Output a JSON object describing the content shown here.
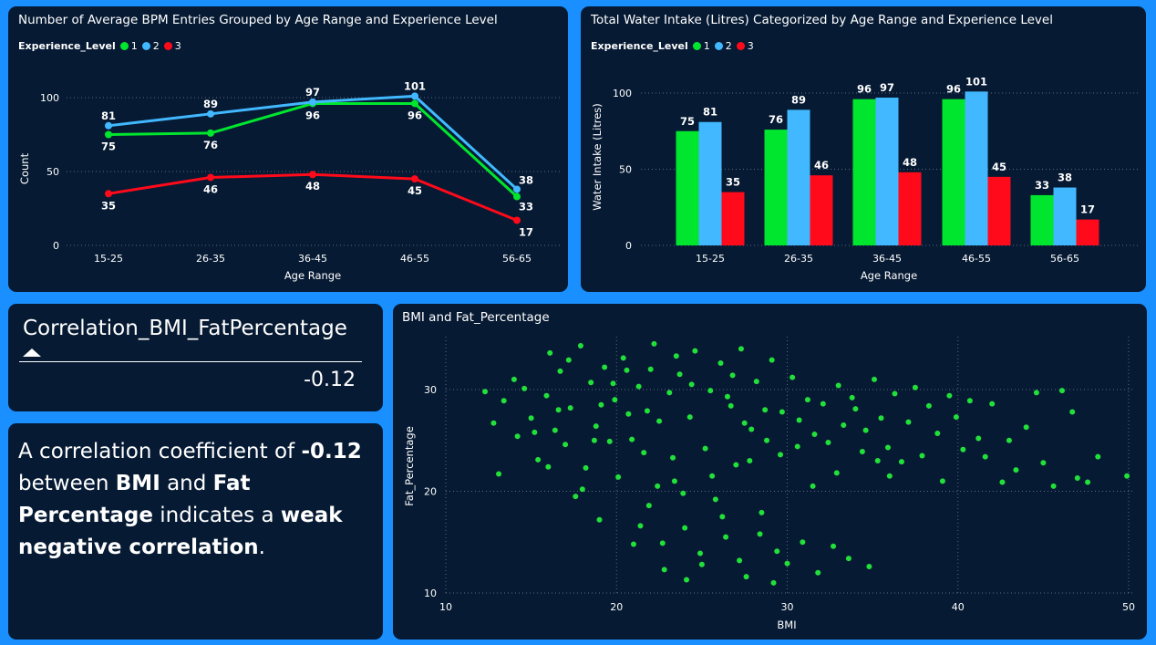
{
  "colors": {
    "page_bg": "#1a8fff",
    "card_bg": "#061a33",
    "level1": "#00e62e",
    "level2": "#41b8ff",
    "level3": "#ff0a1a",
    "scatter": "#22e03a"
  },
  "legend": {
    "title": "Experience_Level",
    "items": [
      "1",
      "2",
      "3"
    ]
  },
  "line_card": {
    "title": "Number of Average BPM Entries Grouped by Age Range and Experience Level"
  },
  "bar_card": {
    "title": "Total Water Intake (Litres) Categorized by Age Range and Experience Level"
  },
  "scatter_card": {
    "title": "BMI and Fat_Percentage"
  },
  "correlation_card": {
    "label": "Correlation_BMI_FatPercentage",
    "value": "-0.12"
  },
  "narrative": {
    "t1": "A correlation coefficient of ",
    "b1": "-0.12",
    "t2": " between ",
    "b2": "BMI",
    "t3": " and ",
    "b3": "Fat Percentage",
    "t4": " indicates a ",
    "b4": "weak negative correlation",
    "t5": "."
  },
  "chart_data": [
    {
      "type": "line",
      "title": "Number of Average BPM Entries Grouped by Age Range and Experience Level",
      "xlabel": "Age Range",
      "ylabel": "Count",
      "categories": [
        "15-25",
        "26-35",
        "36-45",
        "46-55",
        "56-65"
      ],
      "ylim": [
        0,
        110
      ],
      "yticks": [
        0,
        50,
        100
      ],
      "grid": true,
      "legend_title": "Experience_Level",
      "legend_position": "top-left",
      "series": [
        {
          "name": "1",
          "values": [
            75,
            76,
            96,
            96,
            33
          ]
        },
        {
          "name": "2",
          "values": [
            81,
            89,
            97,
            101,
            38
          ]
        },
        {
          "name": "3",
          "values": [
            35,
            46,
            48,
            45,
            17
          ]
        }
      ]
    },
    {
      "type": "bar",
      "title": "Total Water Intake (Litres) Categorized by Age Range and Experience Level",
      "xlabel": "Age Range",
      "ylabel": "Water Intake (Litres)",
      "categories": [
        "15-25",
        "26-35",
        "36-45",
        "46-55",
        "56-65"
      ],
      "ylim": [
        0,
        110
      ],
      "yticks": [
        0,
        50,
        100
      ],
      "grid": true,
      "legend_title": "Experience_Level",
      "legend_position": "top-left",
      "series": [
        {
          "name": "1",
          "values": [
            75,
            76,
            96,
            96,
            33
          ]
        },
        {
          "name": "2",
          "values": [
            81,
            89,
            97,
            101,
            38
          ]
        },
        {
          "name": "3",
          "values": [
            35,
            46,
            48,
            45,
            17
          ]
        }
      ]
    },
    {
      "type": "scatter",
      "title": "BMI and Fat_Percentage",
      "xlabel": "BMI",
      "ylabel": "Fat_Percentage",
      "xlim": [
        10,
        50
      ],
      "ylim": [
        10,
        35
      ],
      "xticks": [
        10,
        20,
        30,
        40,
        50
      ],
      "yticks": [
        10,
        20,
        30
      ],
      "grid": true,
      "points": [
        [
          12.3,
          29.8
        ],
        [
          12.8,
          26.7
        ],
        [
          13.1,
          21.7
        ],
        [
          13.4,
          28.9
        ],
        [
          14.2,
          25.4
        ],
        [
          14.6,
          30.1
        ],
        [
          15.0,
          27.2
        ],
        [
          15.4,
          23.1
        ],
        [
          15.9,
          29.4
        ],
        [
          16.1,
          33.6
        ],
        [
          16.4,
          26.0
        ],
        [
          16.7,
          31.8
        ],
        [
          17.0,
          24.6
        ],
        [
          17.3,
          28.2
        ],
        [
          17.6,
          19.5
        ],
        [
          17.9,
          34.3
        ],
        [
          18.2,
          22.3
        ],
        [
          18.5,
          30.7
        ],
        [
          18.8,
          26.4
        ],
        [
          19.0,
          17.2
        ],
        [
          19.3,
          32.2
        ],
        [
          19.6,
          24.9
        ],
        [
          19.9,
          29.0
        ],
        [
          20.1,
          21.4
        ],
        [
          20.4,
          33.1
        ],
        [
          20.7,
          27.6
        ],
        [
          21.0,
          14.8
        ],
        [
          21.3,
          30.3
        ],
        [
          21.6,
          23.8
        ],
        [
          21.9,
          18.6
        ],
        [
          22.2,
          34.5
        ],
        [
          22.5,
          26.9
        ],
        [
          22.8,
          12.3
        ],
        [
          23.1,
          29.7
        ],
        [
          23.4,
          21.0
        ],
        [
          23.7,
          31.5
        ],
        [
          24.0,
          16.4
        ],
        [
          24.3,
          27.3
        ],
        [
          24.6,
          33.8
        ],
        [
          24.9,
          13.9
        ],
        [
          25.2,
          24.2
        ],
        [
          25.5,
          29.9
        ],
        [
          25.8,
          19.2
        ],
        [
          26.1,
          32.6
        ],
        [
          26.4,
          15.5
        ],
        [
          26.7,
          28.4
        ],
        [
          27.0,
          22.6
        ],
        [
          27.3,
          34.0
        ],
        [
          27.6,
          11.6
        ],
        [
          27.9,
          26.1
        ],
        [
          28.2,
          30.8
        ],
        [
          28.5,
          17.9
        ],
        [
          28.8,
          25.0
        ],
        [
          29.1,
          32.9
        ],
        [
          29.4,
          14.1
        ],
        [
          29.7,
          27.8
        ],
        [
          30.0,
          12.9
        ],
        [
          30.3,
          31.2
        ],
        [
          30.6,
          24.4
        ],
        [
          30.9,
          15.0
        ],
        [
          31.2,
          29.0
        ],
        [
          31.5,
          20.5
        ],
        [
          31.8,
          12.0
        ],
        [
          32.1,
          28.6
        ],
        [
          32.4,
          24.8
        ],
        [
          32.7,
          14.6
        ],
        [
          33.0,
          30.4
        ],
        [
          33.3,
          26.5
        ],
        [
          33.6,
          13.4
        ],
        [
          34.0,
          28.1
        ],
        [
          34.4,
          23.9
        ],
        [
          34.8,
          12.6
        ],
        [
          35.1,
          31.0
        ],
        [
          35.5,
          27.2
        ],
        [
          35.9,
          24.3
        ],
        [
          36.3,
          29.6
        ],
        [
          36.7,
          22.9
        ],
        [
          37.1,
          26.8
        ],
        [
          37.5,
          30.2
        ],
        [
          37.9,
          23.5
        ],
        [
          38.3,
          28.4
        ],
        [
          38.8,
          25.7
        ],
        [
          39.1,
          21.0
        ],
        [
          39.5,
          29.4
        ],
        [
          39.9,
          27.3
        ],
        [
          40.3,
          24.1
        ],
        [
          40.7,
          28.9
        ],
        [
          41.2,
          25.2
        ],
        [
          41.6,
          23.4
        ],
        [
          42.0,
          28.6
        ],
        [
          42.6,
          20.9
        ],
        [
          43.0,
          25.0
        ],
        [
          43.4,
          22.1
        ],
        [
          44.0,
          26.3
        ],
        [
          44.6,
          29.7
        ],
        [
          45.0,
          22.8
        ],
        [
          45.6,
          20.5
        ],
        [
          46.1,
          29.9
        ],
        [
          46.7,
          27.8
        ],
        [
          47.0,
          21.3
        ],
        [
          47.6,
          20.9
        ],
        [
          48.2,
          23.4
        ],
        [
          49.9,
          21.5
        ],
        [
          14.0,
          31.0
        ],
        [
          15.2,
          25.8
        ],
        [
          16.6,
          28.0
        ],
        [
          18.0,
          20.2
        ],
        [
          19.8,
          30.6
        ],
        [
          20.9,
          25.1
        ],
        [
          22.0,
          32.0
        ],
        [
          23.3,
          23.3
        ],
        [
          24.4,
          30.5
        ],
        [
          25.6,
          21.5
        ],
        [
          26.8,
          31.4
        ],
        [
          27.8,
          23.0
        ],
        [
          28.7,
          28.0
        ],
        [
          29.6,
          23.6
        ],
        [
          21.4,
          16.6
        ],
        [
          22.7,
          14.9
        ],
        [
          23.9,
          19.8
        ],
        [
          25.0,
          12.8
        ],
        [
          26.2,
          17.5
        ],
        [
          27.2,
          13.2
        ],
        [
          28.4,
          15.8
        ],
        [
          29.2,
          11.0
        ],
        [
          24.1,
          11.3
        ],
        [
          22.4,
          20.5
        ],
        [
          19.1,
          28.5
        ],
        [
          17.2,
          32.9
        ],
        [
          20.6,
          31.9
        ],
        [
          26.5,
          29.3
        ],
        [
          23.5,
          33.3
        ],
        [
          27.5,
          26.7
        ],
        [
          21.8,
          27.9
        ],
        [
          18.7,
          25.0
        ],
        [
          16.0,
          22.4
        ],
        [
          30.7,
          27.0
        ],
        [
          32.9,
          21.8
        ],
        [
          34.6,
          26.0
        ],
        [
          36.0,
          21.5
        ],
        [
          31.6,
          25.6
        ],
        [
          33.8,
          29.2
        ],
        [
          35.3,
          23.0
        ]
      ]
    }
  ]
}
